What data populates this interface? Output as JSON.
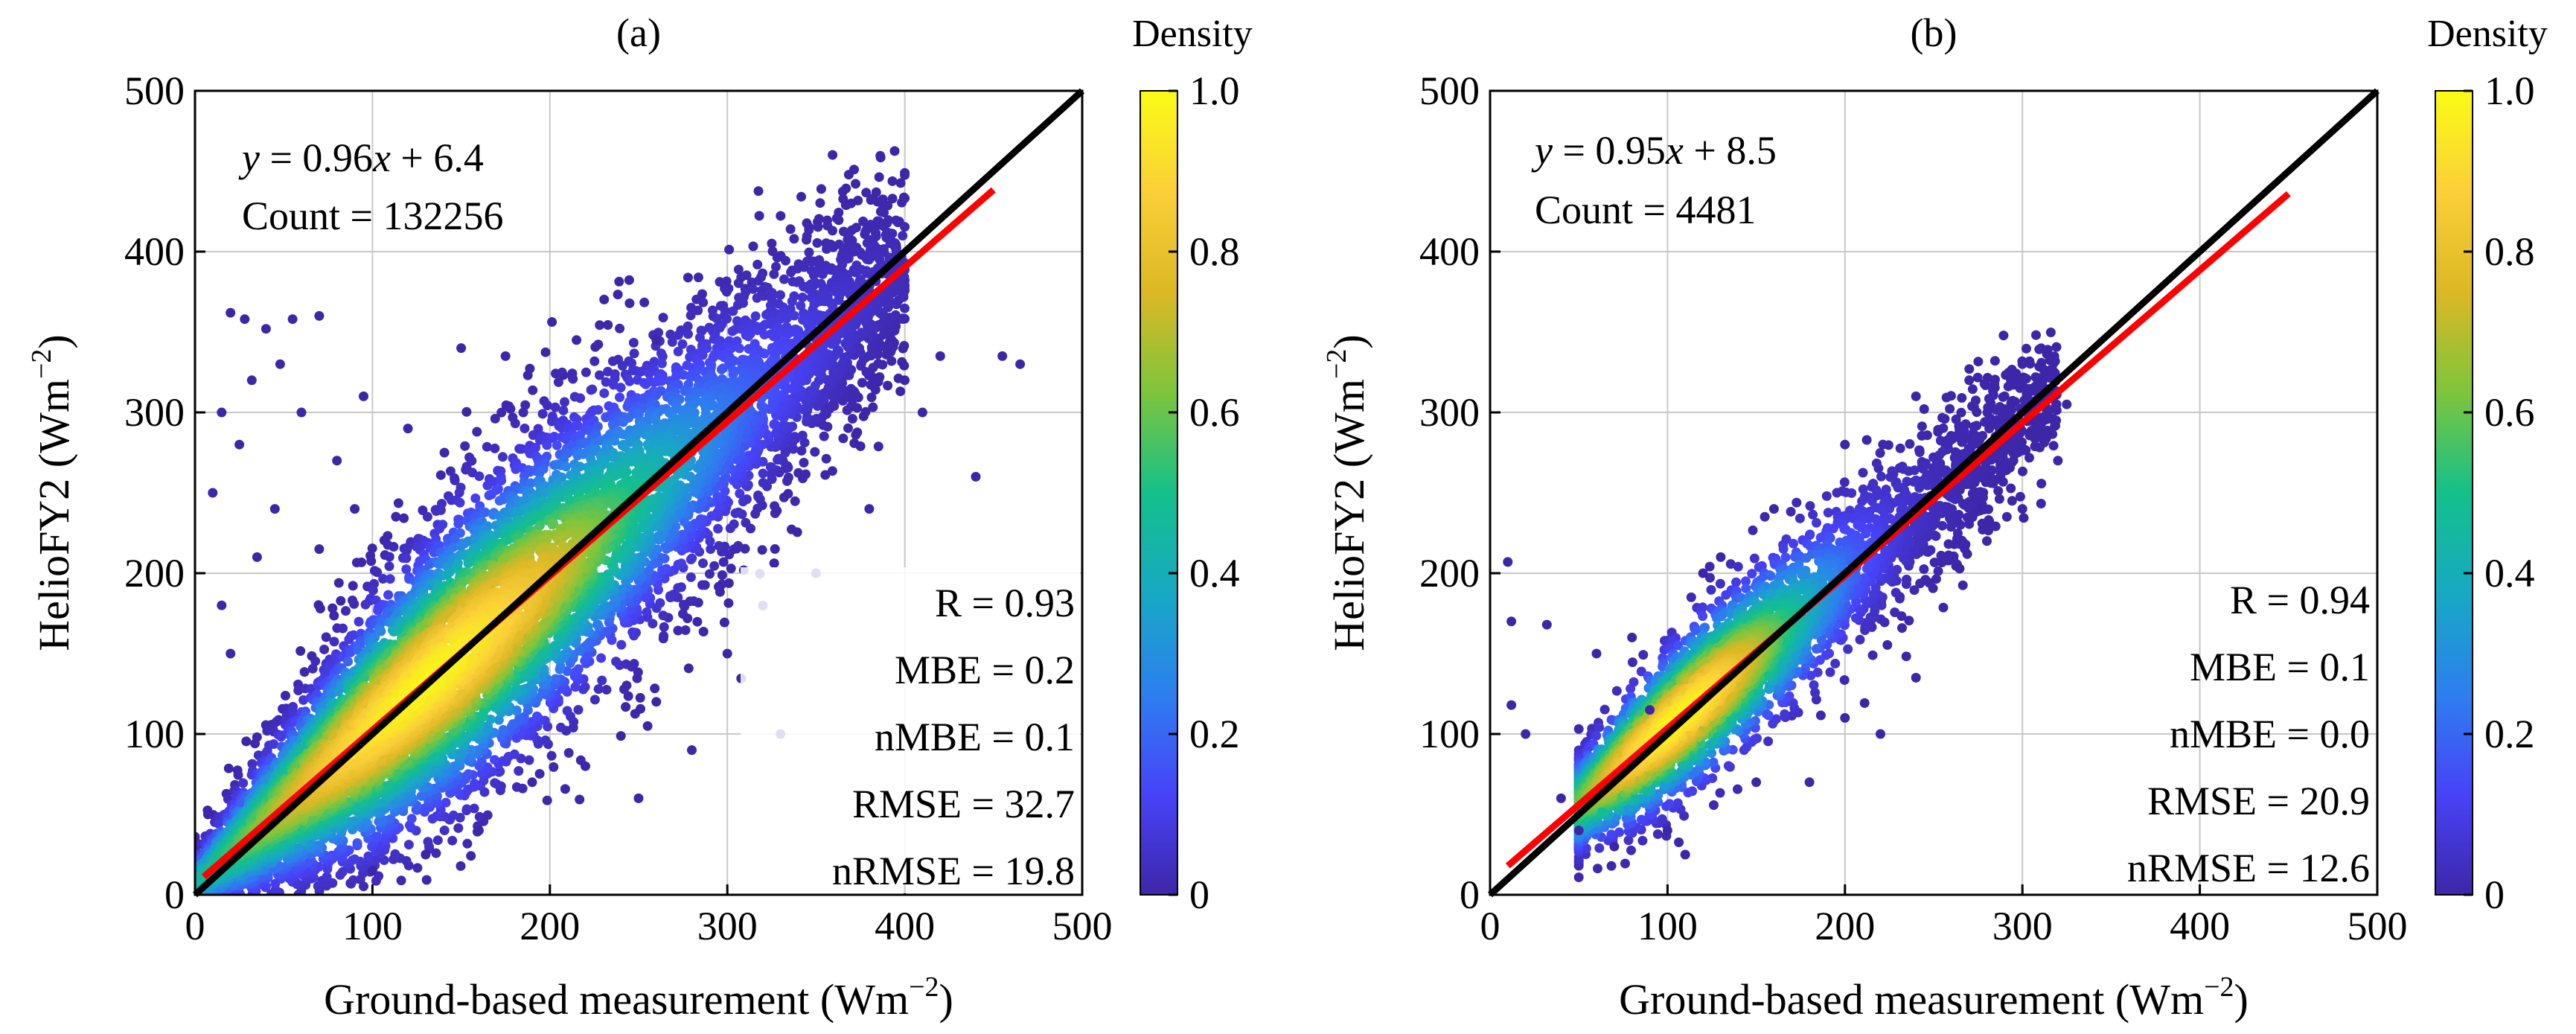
{
  "colors": {
    "scatter_low": "#3e26a8",
    "fit_line": "#ff0000",
    "one_to_one_line": "#000000",
    "colormap": [
      "#3e26a8",
      "#4743f8",
      "#2d7fef",
      "#17a9c3",
      "#14c08a",
      "#7ec53c",
      "#dcb825",
      "#fbcf38",
      "#f9fb15"
    ]
  },
  "chart_data": [
    {
      "type": "scatter",
      "panel_label": "(a)",
      "xlabel_text": "Ground-based measurement (Wm",
      "ylabel_text": "HelioFY2 (Wm",
      "unit_exponent": "−2",
      "unit_close": ")",
      "xlim": [
        0,
        500
      ],
      "ylim": [
        0,
        500
      ],
      "xticks": [
        "0",
        "100",
        "200",
        "300",
        "400",
        "500"
      ],
      "yticks": [
        "0",
        "100",
        "200",
        "300",
        "400",
        "500"
      ],
      "grid": true,
      "equation": {
        "y": "y",
        "middle": " = 0.96",
        "x": "x",
        "tail": " + 6.4"
      },
      "count_text": "Count = 132256",
      "fit": {
        "slope": 0.96,
        "intercept": 6.4,
        "x_range": [
          5,
          450
        ]
      },
      "one_to_one": true,
      "stats": [
        "R = 0.93",
        "MBE = 0.2",
        "nMBE = 0.1",
        "RMSE = 32.7",
        "nRMSE = 19.8"
      ],
      "colorbar": {
        "title": "Density",
        "min": 0,
        "max": 1,
        "ticks": [
          "0",
          "0.2",
          "0.4",
          "0.6",
          "0.8",
          "1.0"
        ]
      },
      "density": {
        "center_x": [
          0,
          25,
          100,
          150,
          200,
          250,
          300,
          350,
          400
        ],
        "spread": [
          10,
          20,
          42,
          50,
          50,
          48,
          44,
          38,
          28
        ],
        "peak_x": 130,
        "peak_width": 110,
        "core_spread_ratio": 0.28
      },
      "outliers": [
        [
          20,
          362
        ],
        [
          28,
          358
        ],
        [
          40,
          352
        ],
        [
          55,
          358
        ],
        [
          70,
          360
        ],
        [
          32,
          320
        ],
        [
          48,
          330
        ],
        [
          15,
          300
        ],
        [
          25,
          280
        ],
        [
          60,
          300
        ],
        [
          95,
          310
        ],
        [
          10,
          250
        ],
        [
          45,
          240
        ],
        [
          80,
          270
        ],
        [
          120,
          290
        ],
        [
          150,
          340
        ],
        [
          175,
          335
        ],
        [
          215,
          345
        ],
        [
          260,
          345
        ],
        [
          35,
          210
        ],
        [
          70,
          215
        ],
        [
          465,
          330
        ],
        [
          455,
          335
        ],
        [
          420,
          335
        ],
        [
          400,
          320
        ],
        [
          380,
          240
        ],
        [
          350,
          200
        ],
        [
          300,
          150
        ],
        [
          260,
          120
        ],
        [
          220,
          80
        ],
        [
          190,
          70
        ],
        [
          160,
          40
        ],
        [
          130,
          25
        ],
        [
          100,
          15
        ],
        [
          250,
          60
        ],
        [
          280,
          90
        ],
        [
          330,
          100
        ],
        [
          15,
          180
        ],
        [
          20,
          150
        ],
        [
          90,
          240
        ],
        [
          440,
          260
        ],
        [
          410,
          300
        ]
      ]
    },
    {
      "type": "scatter",
      "panel_label": "(b)",
      "xlabel_text": "Ground-based measurement (Wm",
      "ylabel_text": "HelioFY2 (Wm",
      "unit_exponent": "−2",
      "unit_close": ")",
      "xlim": [
        0,
        500
      ],
      "ylim": [
        0,
        500
      ],
      "xticks": [
        "0",
        "100",
        "200",
        "300",
        "400",
        "500"
      ],
      "yticks": [
        "0",
        "100",
        "200",
        "300",
        "400",
        "500"
      ],
      "grid": true,
      "equation": {
        "y": "y",
        "middle": " = 0.95",
        "x": "x",
        "tail": " + 8.5"
      },
      "count_text": "Count = 4481",
      "fit": {
        "slope": 0.95,
        "intercept": 8.5,
        "x_range": [
          10,
          450
        ]
      },
      "one_to_one": true,
      "stats": [
        "R = 0.94",
        "MBE = 0.1",
        "nMBE = 0.0",
        "RMSE = 20.9",
        "nRMSE = 12.6"
      ],
      "colorbar": {
        "title": "Density",
        "min": 0,
        "max": 1,
        "ticks": [
          "0",
          "0.2",
          "0.4",
          "0.6",
          "0.8",
          "1.0"
        ]
      },
      "density": {
        "center_x": [
          50,
          80,
          120,
          180,
          240,
          280,
          320
        ],
        "spread": [
          14,
          20,
          24,
          26,
          26,
          24,
          18
        ],
        "peak_x": 105,
        "peak_width": 60,
        "core_spread_ratio": 0.35
      },
      "outliers": [
        [
          10,
          207
        ],
        [
          12,
          170
        ],
        [
          32,
          168
        ],
        [
          12,
          118
        ],
        [
          20,
          100
        ],
        [
          40,
          60
        ],
        [
          50,
          40
        ],
        [
          60,
          150
        ],
        [
          80,
          160
        ],
        [
          70,
          30
        ],
        [
          100,
          40
        ],
        [
          110,
          25
        ],
        [
          150,
          70
        ],
        [
          180,
          70
        ],
        [
          200,
          110
        ],
        [
          220,
          100
        ],
        [
          240,
          135
        ],
        [
          120,
          200
        ],
        [
          130,
          210
        ],
        [
          160,
          240
        ],
        [
          200,
          280
        ],
        [
          240,
          310
        ],
        [
          270,
          320
        ],
        [
          300,
          330
        ],
        [
          310,
          318
        ],
        [
          325,
          305
        ],
        [
          320,
          270
        ],
        [
          300,
          240
        ],
        [
          280,
          220
        ],
        [
          90,
          115
        ]
      ]
    }
  ]
}
